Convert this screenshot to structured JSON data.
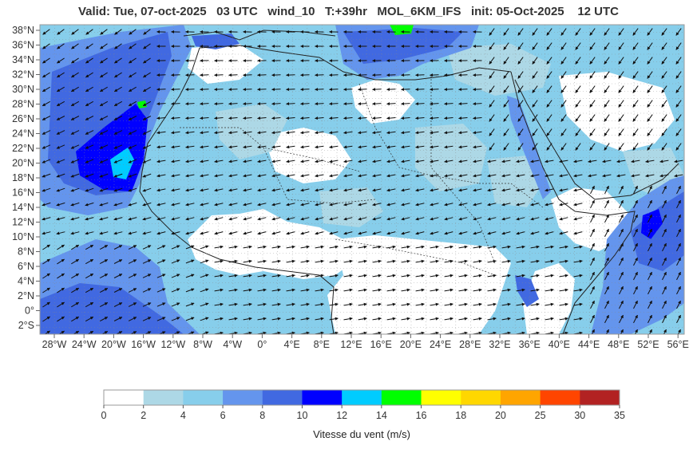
{
  "title": "Valid: Tue, 07-oct-2025   03 UTC   wind_10   T:+39hr   MOL_6KM_IFS   init: 05-Oct-2025    12 UTC",
  "map": {
    "lat_labels": [
      "38°N",
      "36°N",
      "34°N",
      "32°N",
      "30°N",
      "28°N",
      "26°N",
      "24°N",
      "22°N",
      "20°N",
      "18°N",
      "16°N",
      "14°N",
      "12°N",
      "10°N",
      "8°N",
      "6°N",
      "4°N",
      "2°N",
      "0°",
      "2°S"
    ],
    "lon_labels": [
      "28°W",
      "24°W",
      "20°W",
      "16°W",
      "12°W",
      "8°W",
      "4°W",
      "0°",
      "4°E",
      "8°E",
      "12°E",
      "16°E",
      "20°E",
      "24°E",
      "28°E",
      "32°E",
      "36°E",
      "40°E",
      "44°E",
      "48°E",
      "52°E",
      "56°E"
    ],
    "colors": {
      "land_calm": "#ffffff",
      "wind_2_4": "#add8e6",
      "wind_4_6": "#87ceeb",
      "wind_6_8": "#6495ed",
      "wind_8_10": "#4169e1",
      "wind_10_12": "#0000ff",
      "wind_12_14": "#00ccff",
      "wind_14_16": "#00ff00"
    }
  },
  "colorbar": {
    "ticks": [
      "0",
      "2",
      "4",
      "6",
      "8",
      "10",
      "12",
      "14",
      "16",
      "18",
      "20",
      "25",
      "30",
      "35"
    ],
    "colors": [
      "#ffffff",
      "#add8e6",
      "#87ceeb",
      "#6495ed",
      "#4169e1",
      "#0000ff",
      "#00ccff",
      "#00ff00",
      "#ffff00",
      "#ffd700",
      "#ffa500",
      "#ff4500",
      "#b22222"
    ],
    "label": "Vitesse du vent (m/s)"
  }
}
